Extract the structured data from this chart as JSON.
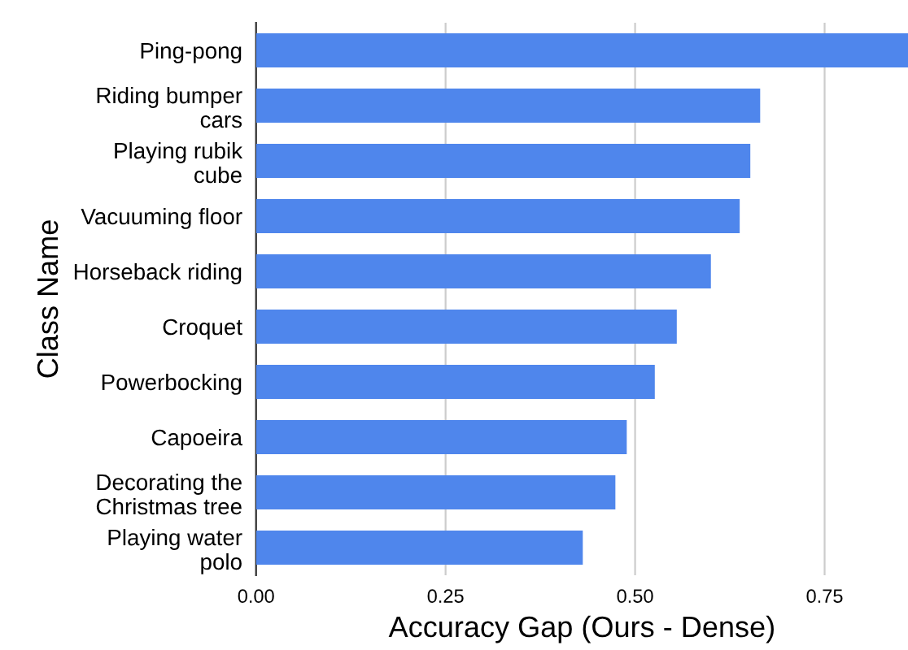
{
  "chart_data": {
    "type": "bar",
    "orientation": "horizontal",
    "xlabel": "Accuracy Gap (Ours - Dense)",
    "ylabel": "Class Name",
    "categories": [
      "Ping-pong",
      "Riding bumper\ncars",
      "Playing rubik\ncube",
      "Vacuuming floor",
      "Horseback riding",
      "Croquet",
      "Powerbocking",
      "Capoeira",
      "Decorating the\nChristmas tree",
      "Playing water\npolo"
    ],
    "values": [
      0.86,
      0.665,
      0.652,
      0.638,
      0.6,
      0.555,
      0.526,
      0.489,
      0.474,
      0.431
    ],
    "color": "#4f86ec",
    "xlim": [
      0,
      0.86
    ],
    "xticks": [
      {
        "value": 0,
        "label": "0.00"
      },
      0.25,
      {
        "value": 0.5,
        "label": "0.50"
      },
      0.75
    ],
    "grid": "x",
    "legend": false
  }
}
